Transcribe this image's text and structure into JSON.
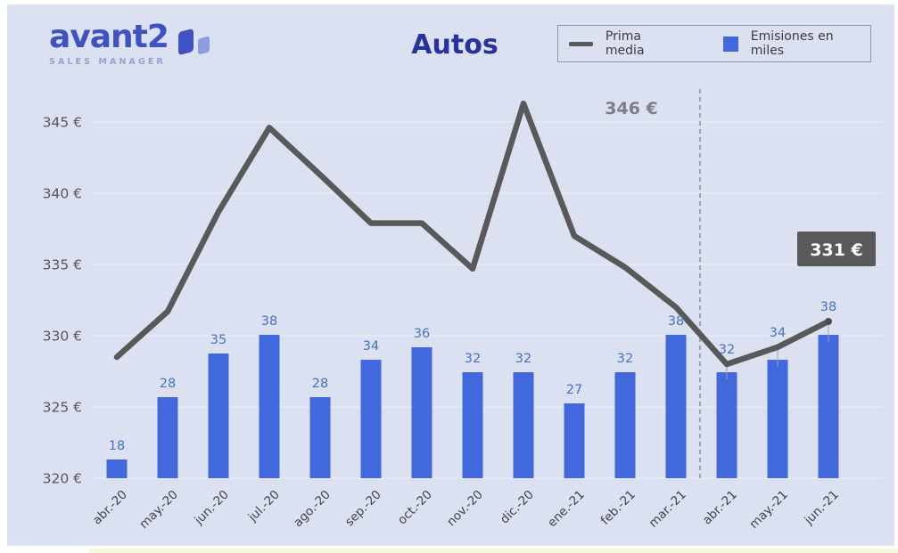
{
  "brand": {
    "name": "avant2",
    "tagline": "SALES MANAGER",
    "logo_color": "#3e52c3",
    "logo_icon": "avant2-mark-icon"
  },
  "title": "Autos",
  "legend": {
    "position": "top-right",
    "items": [
      {
        "label": "Prima media",
        "swatch": "line",
        "color": "#595959"
      },
      {
        "label": "Emisiones en miles",
        "swatch": "square",
        "color": "#4169dd"
      }
    ]
  },
  "chart_data": {
    "type": "combo-line-bar",
    "title": "Autos",
    "categories": [
      "abr.-20",
      "may.-20",
      "jun.-20",
      "jul.-20",
      "ago.-20",
      "sep.-20",
      "oct.-20",
      "nov.-20",
      "dic.-20",
      "ene.-21",
      "feb.-21",
      "mar.-21",
      "abr.-21",
      "may.-21",
      "jun.-21"
    ],
    "series": [
      {
        "name": "Prima media",
        "type": "line",
        "color": "#595959",
        "unit": "€",
        "values": [
          328.5,
          331.7,
          338.7,
          344.6,
          341.3,
          337.9,
          337.9,
          334.7,
          346.3,
          337.0,
          334.8,
          332.0,
          328.0,
          329.2,
          331.0
        ]
      },
      {
        "name": "Emisiones en miles",
        "type": "bar",
        "color": "#4169dd",
        "label_color": "#4472c8",
        "values": [
          18,
          28,
          35,
          38,
          28,
          34,
          36,
          32,
          32,
          27,
          32,
          38,
          32,
          34,
          38
        ]
      }
    ],
    "y_axis_left": {
      "tick_labels": [
        "345 €",
        "340 €",
        "335 €",
        "330 €",
        "325 €",
        "320 €"
      ],
      "tick_values": [
        345,
        340,
        335,
        330,
        325,
        320
      ],
      "min": 320,
      "max": 347.5,
      "grid": true
    },
    "bar_axis": {
      "min": 15,
      "max": 40,
      "hidden": true
    },
    "annotations": [
      {
        "id": "peak",
        "text": "346 €",
        "style": "plain",
        "anchor_category": "dic.-20",
        "color": "#7c7f86"
      },
      {
        "id": "latest",
        "text": "331 €",
        "style": "badge",
        "anchor_category": "jun.-21",
        "badge_bg": "#595959",
        "badge_text_color": "#ffffff"
      }
    ],
    "divider_after_category": "mar.-21",
    "legend_position": "top-right",
    "background": "#dbe1f1",
    "gridline_color": "#e8ebf6"
  }
}
